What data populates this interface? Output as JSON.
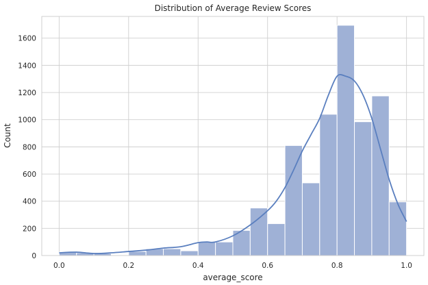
{
  "chart_data": {
    "type": "bar",
    "title": "Distribution of Average Review Scores",
    "xlabel": "average_score",
    "ylabel": "Count",
    "xlim": [
      -0.05,
      1.05
    ],
    "ylim": [
      0,
      1760
    ],
    "x_ticks": [
      0.0,
      0.2,
      0.4,
      0.6,
      0.8,
      1.0
    ],
    "x_tick_labels": [
      "0.0",
      "0.2",
      "0.4",
      "0.6",
      "0.8",
      "1.0"
    ],
    "y_ticks": [
      0,
      200,
      400,
      600,
      800,
      1000,
      1200,
      1400,
      1600
    ],
    "y_tick_labels": [
      "0",
      "200",
      "400",
      "600",
      "800",
      "1000",
      "1200",
      "1400",
      "1600"
    ],
    "grid": true,
    "bin_edges": [
      0.0,
      0.05,
      0.1,
      0.15,
      0.2,
      0.25,
      0.3,
      0.35,
      0.4,
      0.45,
      0.5,
      0.55,
      0.6,
      0.65,
      0.7,
      0.75,
      0.8,
      0.85,
      0.9,
      0.95,
      1.0
    ],
    "values": [
      25,
      20,
      15,
      0,
      30,
      50,
      50,
      35,
      100,
      100,
      185,
      350,
      235,
      810,
      535,
      1040,
      1695,
      985,
      1175,
      395
    ],
    "bar_color": "#9fb1d6",
    "kde_color": "#5a7fbf",
    "kde_curve": {
      "x": [
        0.0,
        0.05,
        0.1,
        0.15,
        0.2,
        0.25,
        0.3,
        0.35,
        0.4,
        0.425,
        0.45,
        0.5,
        0.55,
        0.6,
        0.625,
        0.65,
        0.675,
        0.7,
        0.725,
        0.75,
        0.775,
        0.8,
        0.825,
        0.85,
        0.875,
        0.9,
        0.925,
        0.95,
        0.975,
        1.0
      ],
      "y": [
        20,
        25,
        15,
        20,
        30,
        40,
        55,
        65,
        95,
        100,
        100,
        145,
        225,
        330,
        400,
        500,
        630,
        770,
        890,
        1010,
        1180,
        1320,
        1320,
        1285,
        1180,
        1010,
        785,
        560,
        380,
        250
      ]
    }
  }
}
